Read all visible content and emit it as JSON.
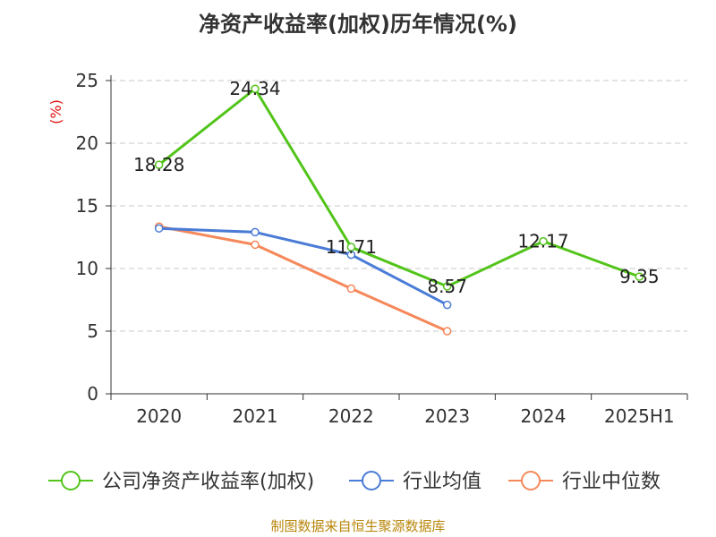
{
  "chart_data": {
    "type": "line",
    "title": "净资产收益率(加权)历年情况(%)",
    "ylabel": "(%)",
    "xlabel": "",
    "ylim": [
      0,
      25
    ],
    "y_ticks": [
      "0",
      "5",
      "10",
      "15",
      "20",
      "25"
    ],
    "categories": [
      "2020",
      "2021",
      "2022",
      "2023",
      "2024",
      "2025H1"
    ],
    "grid": true,
    "legend_position": "bottom",
    "series": [
      {
        "name": "公司净资产收益率(加权)",
        "color": "#52c41a",
        "values": [
          18.28,
          24.34,
          11.71,
          8.57,
          12.17,
          9.35
        ],
        "labels": [
          "18.28",
          "24.34",
          "11.71",
          "8.57",
          "12.17",
          "9.35"
        ]
      },
      {
        "name": "行业均值",
        "color": "#4a7bd6",
        "values": [
          13.2,
          12.9,
          11.1,
          7.1,
          null,
          null
        ]
      },
      {
        "name": "行业中位数",
        "color": "#f5885a",
        "values": [
          13.35,
          11.9,
          8.4,
          5.0,
          null,
          null
        ]
      }
    ]
  },
  "footer": {
    "source": "制图数据来自恒生聚源数据库"
  }
}
